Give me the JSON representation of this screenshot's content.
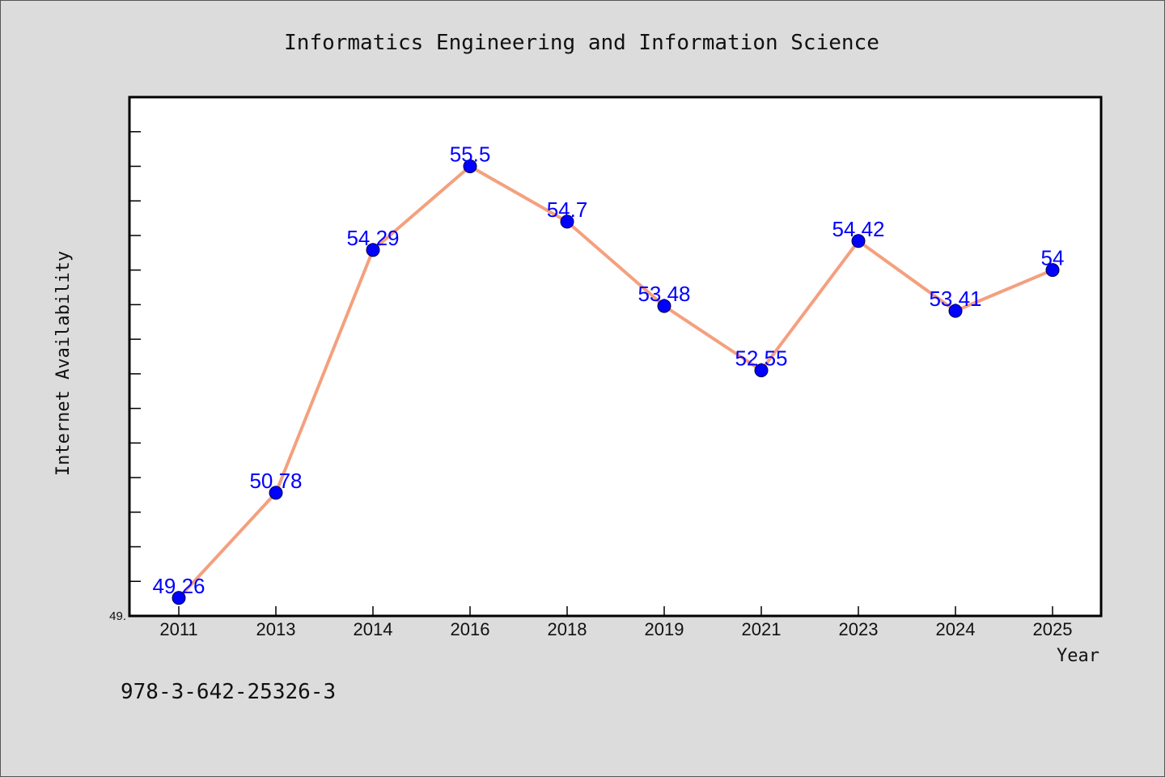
{
  "footer_text": "978-3-642-25326-3",
  "colors": {
    "background": "#dcdcdc",
    "plot_background": "#ffffff",
    "line": "#f4a07e",
    "marker": "#0000ff",
    "data_label": "#0000ff"
  },
  "chart_data": {
    "type": "line",
    "title": "Informatics Engineering and Information Science",
    "xlabel": "Year",
    "ylabel": "Internet Availability",
    "categories": [
      "2011",
      "2013",
      "2014",
      "2016",
      "2018",
      "2019",
      "2021",
      "2023",
      "2024",
      "2025"
    ],
    "series": [
      {
        "values": [
          49.26,
          50.78,
          54.29,
          55.5,
          54.7,
          53.48,
          52.55,
          54.42,
          53.41,
          54
        ],
        "data_labels": [
          "49.26",
          "50.78",
          "54.29",
          "55.5",
          "54.7",
          "53.48",
          "52.55",
          "54.42",
          "53.41",
          "54"
        ]
      }
    ],
    "y_tick_labels": [
      "49."
    ],
    "ylim": [
      49.0,
      56.5
    ],
    "y_minor_tick_step": 0.5,
    "grid": false,
    "legend": "none"
  }
}
